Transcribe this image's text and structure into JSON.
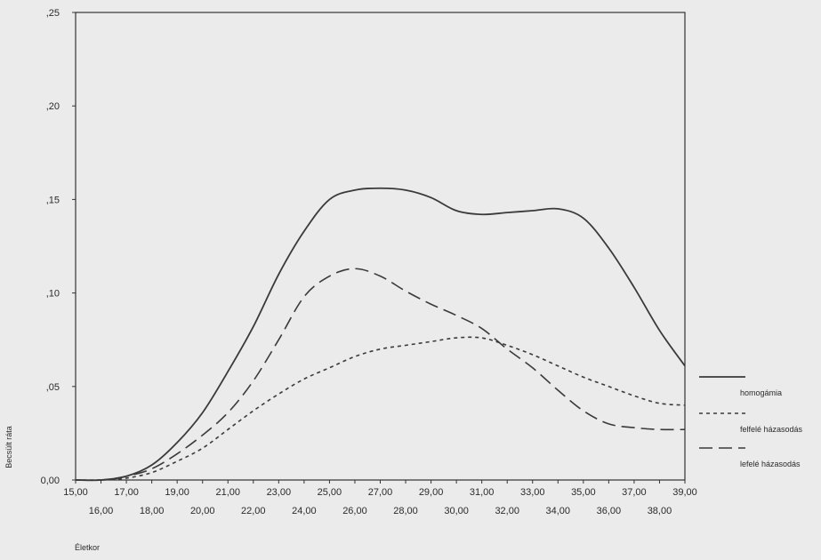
{
  "chart_data": {
    "type": "line",
    "xlabel": "Életkor",
    "ylabel": "Becsült ráta",
    "xlim": [
      15,
      39
    ],
    "ylim": [
      0,
      0.25
    ],
    "grid": false,
    "legend_position": "right",
    "y_ticks": [
      {
        "value": 0.0,
        "label": "0,00"
      },
      {
        "value": 0.05,
        "label": ",05"
      },
      {
        "value": 0.1,
        "label": ",10"
      },
      {
        "value": 0.15,
        "label": ",15"
      },
      {
        "value": 0.2,
        "label": ",20"
      },
      {
        "value": 0.25,
        "label": ",25"
      }
    ],
    "x_ticks": [
      {
        "value": 15,
        "label": "15,00"
      },
      {
        "value": 16,
        "label": "16,00"
      },
      {
        "value": 17,
        "label": "17,00"
      },
      {
        "value": 18,
        "label": "18,00"
      },
      {
        "value": 19,
        "label": "19,00"
      },
      {
        "value": 20,
        "label": "20,00"
      },
      {
        "value": 21,
        "label": "21,00"
      },
      {
        "value": 22,
        "label": "22,00"
      },
      {
        "value": 23,
        "label": "23,00"
      },
      {
        "value": 24,
        "label": "24,00"
      },
      {
        "value": 25,
        "label": "25,00"
      },
      {
        "value": 26,
        "label": "26,00"
      },
      {
        "value": 27,
        "label": "27,00"
      },
      {
        "value": 28,
        "label": "28,00"
      },
      {
        "value": 29,
        "label": "29,00"
      },
      {
        "value": 30,
        "label": "30,00"
      },
      {
        "value": 31,
        "label": "31,00"
      },
      {
        "value": 32,
        "label": "32,00"
      },
      {
        "value": 33,
        "label": "33,00"
      },
      {
        "value": 34,
        "label": "34,00"
      },
      {
        "value": 35,
        "label": "35,00"
      },
      {
        "value": 36,
        "label": "36,00"
      },
      {
        "value": 37,
        "label": "37,00"
      },
      {
        "value": 38,
        "label": "38,00"
      },
      {
        "value": 39,
        "label": "39,00"
      }
    ],
    "x": [
      15,
      16,
      17,
      18,
      19,
      20,
      21,
      22,
      23,
      24,
      25,
      26,
      27,
      28,
      29,
      30,
      31,
      32,
      33,
      34,
      35,
      36,
      37,
      38,
      39
    ],
    "series": [
      {
        "name": "homogámia",
        "style": "solid",
        "values": [
          0.0,
          0.0,
          0.002,
          0.008,
          0.02,
          0.036,
          0.058,
          0.082,
          0.11,
          0.133,
          0.15,
          0.155,
          0.156,
          0.155,
          0.151,
          0.144,
          0.142,
          0.143,
          0.144,
          0.145,
          0.14,
          0.124,
          0.103,
          0.08,
          0.061
        ]
      },
      {
        "name": "felfelé házasodás",
        "style": "dotted",
        "values": [
          0.0,
          0.0,
          0.001,
          0.004,
          0.01,
          0.017,
          0.027,
          0.037,
          0.046,
          0.054,
          0.06,
          0.066,
          0.07,
          0.072,
          0.074,
          0.076,
          0.076,
          0.072,
          0.067,
          0.061,
          0.055,
          0.05,
          0.045,
          0.041,
          0.04
        ]
      },
      {
        "name": "lefelé házasodás",
        "style": "dashed",
        "values": [
          0.0,
          0.0,
          0.002,
          0.006,
          0.014,
          0.024,
          0.036,
          0.053,
          0.075,
          0.098,
          0.109,
          0.113,
          0.109,
          0.101,
          0.094,
          0.088,
          0.081,
          0.07,
          0.06,
          0.048,
          0.037,
          0.03,
          0.028,
          0.027,
          0.027
        ]
      }
    ]
  }
}
